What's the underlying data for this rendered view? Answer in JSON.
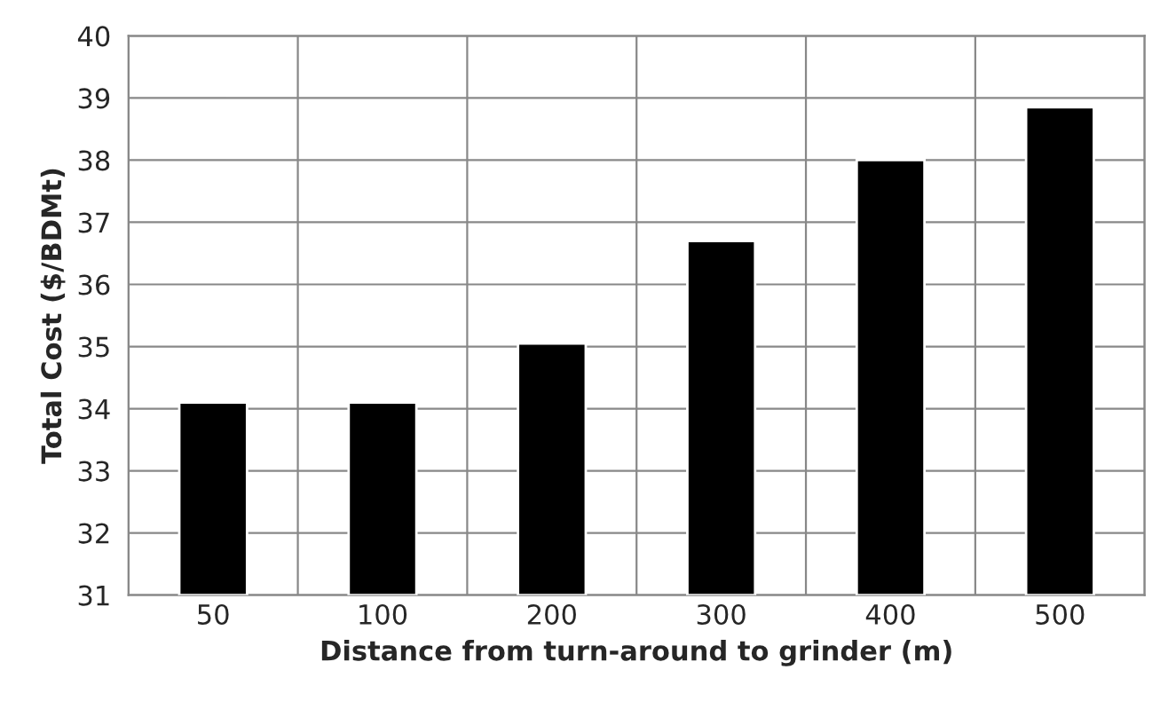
{
  "chart_data": {
    "type": "bar",
    "xlabel": "Distance from turn-around to grinder (m)",
    "ylabel": "Total Cost ($/BDMt)",
    "categories": [
      "50",
      "100",
      "200",
      "300",
      "400",
      "500"
    ],
    "values": [
      34.1,
      34.1,
      35.05,
      36.7,
      38.0,
      38.85
    ],
    "color": "#000000",
    "ylim": [
      31,
      40
    ],
    "yticks": [
      31,
      32,
      33,
      34,
      35,
      36,
      37,
      38,
      39,
      40
    ],
    "grid": true,
    "legend": false
  }
}
